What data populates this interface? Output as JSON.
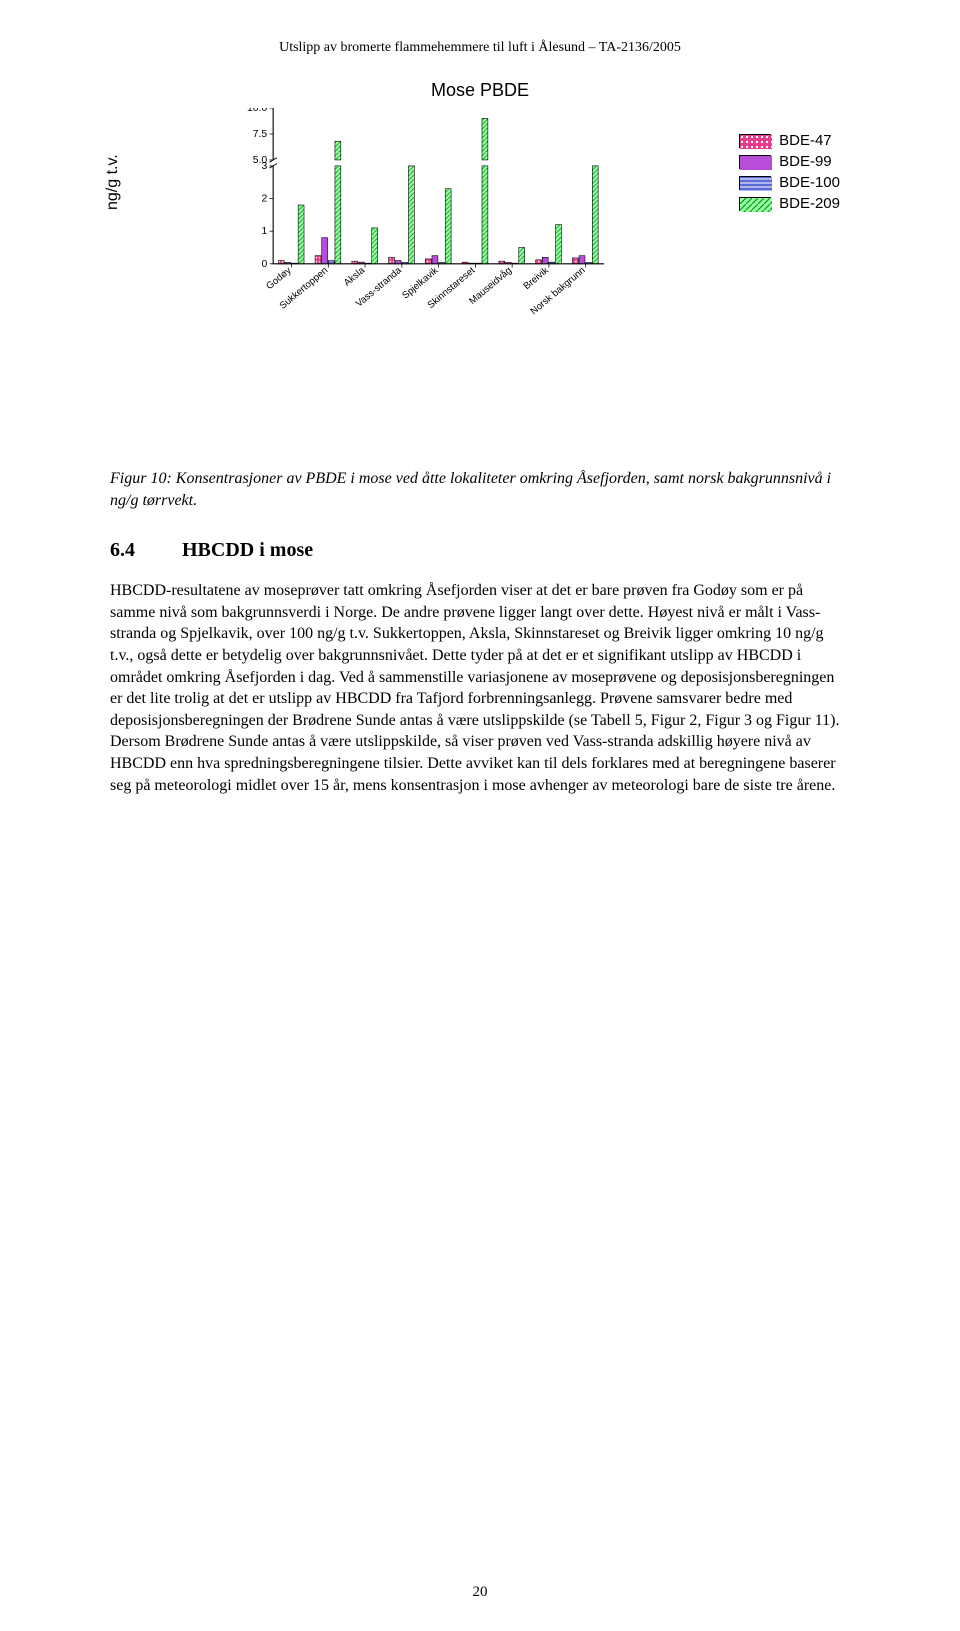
{
  "header": "Utslipp av bromerte flammehemmere til luft i Ålesund – TA-2136/2005",
  "chart": {
    "type": "bar-grouped",
    "title": "Mose PBDE",
    "y_label": "ng/g t.v.",
    "background_color": "#ffffff",
    "axis_color": "#000000",
    "categories": [
      "Godøy",
      "Sukkertoppen",
      "Aksla",
      "Vass-stranda",
      "Spjelkavik",
      "Skinnstareset",
      "Mauseidvåg",
      "Breivik",
      "Norsk bakgrunn"
    ],
    "series": [
      {
        "name": "BDE-47",
        "fill": "#e83c8c",
        "pattern": "dots",
        "values": [
          0.1,
          0.25,
          0.08,
          0.2,
          0.15,
          0.05,
          0.08,
          0.12,
          0.18
        ]
      },
      {
        "name": "BDE-99",
        "fill": "#b84ed8",
        "pattern": "solid",
        "values": [
          0.04,
          0.8,
          0.05,
          0.1,
          0.25,
          0.02,
          0.04,
          0.2,
          0.25
        ]
      },
      {
        "name": "BDE-100",
        "fill": "#5b6bd8",
        "pattern": "hline",
        "values": [
          0.02,
          0.1,
          0.02,
          0.04,
          0.04,
          0.02,
          0.02,
          0.05,
          0.04
        ]
      },
      {
        "name": "BDE-209",
        "fill": "#99ff99",
        "pattern": "diag",
        "values": [
          1.8,
          6.8,
          1.1,
          3.1,
          2.3,
          9.0,
          0.5,
          1.2,
          3.3
        ]
      }
    ],
    "bar_border": "#000000",
    "y": {
      "lower": {
        "min": 0,
        "max": 3,
        "ticks": [
          0,
          1,
          2,
          3
        ]
      },
      "upper": {
        "min": 5,
        "max": 10,
        "ticks": [
          5.0,
          7.5,
          10.0
        ]
      }
    },
    "title_fontsize": 18,
    "label_fontsize": 16,
    "tick_fontsize": 14,
    "bar_group_width": 0.72,
    "bar_gap": 0.02
  },
  "caption": "Figur 10: Konsentrasjoner av PBDE i mose ved åtte lokaliteter omkring Åsefjorden, samt norsk bakgrunnsnivå i ng/g tørrvekt.",
  "section": {
    "number": "6.4",
    "title": "HBCDD i mose"
  },
  "body": "HBCDD-resultatene av moseprøver tatt omkring Åsefjorden viser at det er bare prøven fra Godøy som er på samme nivå som bakgrunnsverdi i Norge. De andre prøvene ligger langt over dette. Høyest nivå er målt i Vass-stranda og Spjelkavik, over 100 ng/g t.v. Sukkertoppen, Aksla, Skinnstareset og Breivik ligger omkring 10 ng/g t.v., også dette er betydelig over bakgrunnsnivået. Dette tyder på at det er et signifikant utslipp av HBCDD i området omkring Åsefjorden i dag. Ved å sammenstille variasjonene av moseprøvene og deposisjons­beregningen er det lite trolig at det er utslipp av HBCDD fra Tafjord forbrenningsanlegg. Prøvene samsvarer bedre med deposisjonsberegningen der Brødrene Sunde antas å være utslippskilde (se Tabell 5, Figur 2, Figur 3 og Figur 11). Dersom Brødrene Sunde antas å være utslippskilde, så viser prøven ved Vass-stranda adskillig høyere nivå av HBCDD enn hva spredningsberegningene tilsier. Dette avviket kan til dels forklares med at beregningene baserer seg på meteorologi midlet over 15 år, mens konsentrasjon i mose avhenger av meteorologi bare de siste tre årene.",
  "page_number": "20"
}
